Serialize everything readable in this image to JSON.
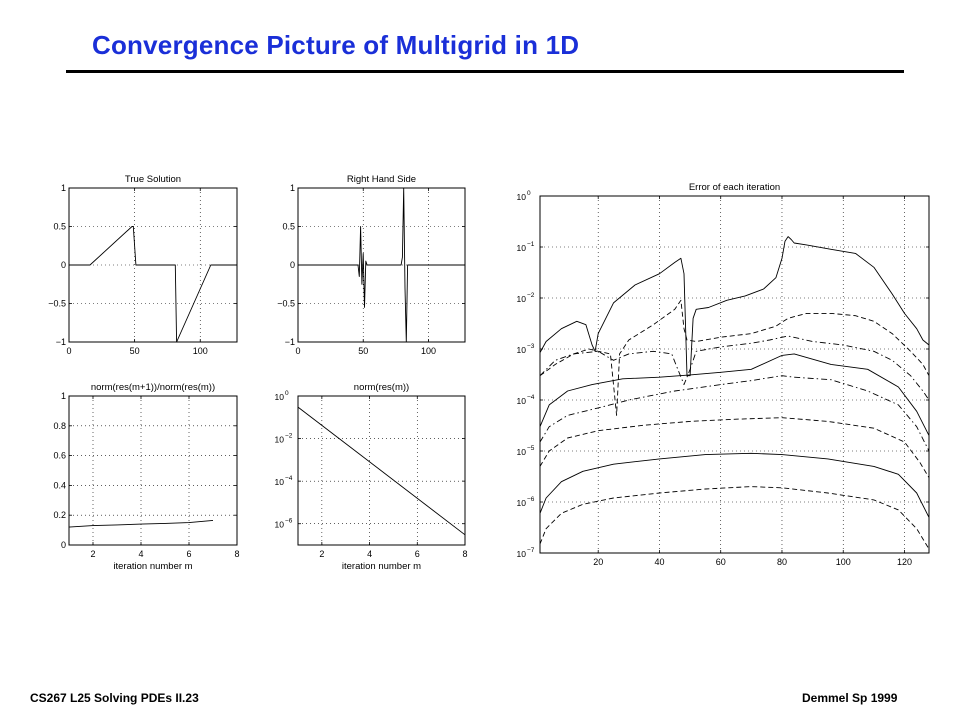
{
  "slide": {
    "title": "Convergence Picture of Multigrid in 1D",
    "footer_left": "CS267  L25 Solving PDEs II.23",
    "footer_right": "Demmel Sp 1999"
  },
  "chart_data": [
    {
      "type": "line",
      "title": "True Solution",
      "xlabel": "",
      "ylabel": "",
      "xlim": [
        0,
        128
      ],
      "ylim": [
        -1,
        1
      ],
      "xticks": [
        0,
        50,
        100
      ],
      "xtick_labels": [
        "0",
        "50",
        "100"
      ],
      "yticks": [
        -1,
        -0.5,
        0,
        0.5,
        1
      ],
      "ytick_labels": [
        "−1",
        "−0.5",
        "0",
        "0.5",
        "1"
      ],
      "grid": true,
      "series": [
        {
          "x": [
            0,
            16,
            48,
            49,
            51,
            80,
            81,
            82,
            108,
            128
          ],
          "y": [
            0,
            0,
            0.5,
            0.5,
            0,
            0,
            0,
            -1,
            0,
            0
          ]
        }
      ]
    },
    {
      "type": "line",
      "title": "Right Hand Side",
      "xlabel": "",
      "ylabel": "",
      "xlim": [
        0,
        128
      ],
      "ylim": [
        -1,
        1
      ],
      "xticks": [
        0,
        50,
        100
      ],
      "xtick_labels": [
        "0",
        "50",
        "100"
      ],
      "yticks": [
        -1,
        -0.5,
        0,
        0.5,
        1
      ],
      "ytick_labels": [
        "−1",
        "−0.5",
        "0",
        "0.5",
        "1"
      ],
      "grid": true,
      "series": [
        {
          "x": [
            0,
            46,
            47,
            48,
            49,
            50,
            51,
            52,
            53,
            79,
            80,
            81,
            82,
            83,
            84,
            100,
            128
          ],
          "y": [
            0,
            0,
            -0.15,
            0.5,
            -0.25,
            0.15,
            -0.55,
            0.05,
            0,
            0,
            0.1,
            1,
            -0.3,
            -1,
            0,
            0,
            0
          ]
        }
      ]
    },
    {
      "type": "line",
      "title": "norm(res(m+1))/norm(res(m))",
      "xlabel": "iteration number m",
      "ylabel": "",
      "xlim": [
        1,
        8
      ],
      "ylim": [
        0,
        1
      ],
      "xticks": [
        2,
        4,
        6,
        8
      ],
      "xtick_labels": [
        "2",
        "4",
        "6",
        "8"
      ],
      "yticks": [
        0,
        0.2,
        0.4,
        0.6,
        0.8,
        1
      ],
      "ytick_labels": [
        "0",
        "0.2",
        "0.4",
        "0.6",
        "0.8",
        "1"
      ],
      "grid": true,
      "series": [
        {
          "x": [
            1,
            2,
            3,
            4,
            5,
            6,
            7
          ],
          "y": [
            0.12,
            0.13,
            0.135,
            0.14,
            0.145,
            0.15,
            0.165
          ]
        }
      ]
    },
    {
      "type": "line",
      "title": "norm(res(m))",
      "xlabel": "iteration number m",
      "ylabel": "",
      "xlim": [
        1,
        8
      ],
      "ylim": [
        1e-07,
        1
      ],
      "yscale": "log",
      "xticks": [
        2,
        4,
        6,
        8
      ],
      "xtick_labels": [
        "2",
        "4",
        "6",
        "8"
      ],
      "yticks": [
        1,
        0.01,
        0.0001,
        1e-06
      ],
      "ytick_exponents": [
        "0",
        "−2",
        "−4",
        "−6"
      ],
      "grid": true,
      "series": [
        {
          "x": [
            1,
            8
          ],
          "y": [
            0.3,
            3e-07
          ]
        }
      ]
    },
    {
      "type": "line",
      "title": "Error of each iteration",
      "xlabel": "",
      "ylabel": "",
      "xlim": [
        1,
        128
      ],
      "ylim": [
        1e-07,
        1
      ],
      "yscale": "log",
      "xticks": [
        20,
        40,
        60,
        80,
        100,
        120
      ],
      "xtick_labels": [
        "20",
        "40",
        "60",
        "80",
        "100",
        "120"
      ],
      "yticks": [
        1,
        0.1,
        0.01,
        0.001,
        0.0001,
        1e-05,
        1e-06,
        1e-07
      ],
      "ytick_exponents": [
        "0",
        "−1",
        "−2",
        "−3",
        "−4",
        "−5",
        "−6",
        "−7"
      ],
      "grid": true,
      "series": [
        {
          "style": "solid",
          "x": [
            1,
            3,
            8,
            13,
            16,
            18,
            19,
            20,
            25,
            32,
            40,
            45,
            47,
            48,
            49,
            50,
            51,
            52,
            56,
            62,
            68,
            74,
            78,
            80,
            81,
            82,
            83,
            84,
            88,
            96,
            104,
            110,
            116,
            120,
            124,
            126,
            128
          ],
          "y": [
            0.00085,
            0.0014,
            0.0025,
            0.0035,
            0.003,
            0.0012,
            0.0009,
            0.002,
            0.008,
            0.018,
            0.03,
            0.05,
            0.06,
            0.03,
            0.0003,
            0.0003,
            0.004,
            0.006,
            0.0065,
            0.009,
            0.011,
            0.015,
            0.025,
            0.06,
            0.13,
            0.16,
            0.14,
            0.12,
            0.11,
            0.09,
            0.075,
            0.04,
            0.012,
            0.005,
            0.0025,
            0.0015,
            0.0012
          ]
        },
        {
          "style": "dashed",
          "x": [
            1,
            6,
            12,
            17,
            20,
            24,
            25,
            26,
            27,
            30,
            38,
            45,
            47,
            48,
            49,
            52,
            60,
            70,
            78,
            82,
            88,
            96,
            104,
            110,
            116,
            122,
            126,
            128
          ],
          "y": [
            0.0003,
            0.0005,
            0.0008,
            0.001,
            0.0009,
            0.0008,
            0.0002,
            5e-05,
            0.0008,
            0.0015,
            0.003,
            0.006,
            0.009,
            0.0025,
            0.0015,
            0.0014,
            0.0017,
            0.002,
            0.0028,
            0.004,
            0.005,
            0.005,
            0.0045,
            0.0035,
            0.002,
            0.0009,
            0.0005,
            0.0003
          ]
        },
        {
          "style": "dashdot",
          "x": [
            1,
            6,
            12,
            20,
            25,
            30,
            38,
            44,
            46,
            48,
            50,
            52,
            60,
            70,
            76,
            82,
            90,
            100,
            110,
            116,
            122,
            126,
            128
          ],
          "y": [
            0.0003,
            0.0006,
            0.0008,
            0.0009,
            0.0006,
            0.0008,
            0.0009,
            0.0008,
            0.0004,
            0.0002,
            0.0004,
            0.0009,
            0.0011,
            0.0013,
            0.0015,
            0.0018,
            0.0014,
            0.0012,
            0.0009,
            0.0006,
            0.0003,
            0.00015,
            0.0001
          ]
        },
        {
          "style": "solid",
          "x": [
            1,
            4,
            10,
            18,
            28,
            40,
            50,
            60,
            70,
            80,
            84,
            96,
            108,
            118,
            124,
            128
          ],
          "y": [
            3e-05,
            8e-05,
            0.00015,
            0.0002,
            0.00026,
            0.00028,
            0.00031,
            0.00035,
            0.0004,
            0.00075,
            0.0008,
            0.0005,
            0.0004,
            0.00018,
            6e-05,
            2e-05
          ]
        },
        {
          "style": "dashdot",
          "x": [
            1,
            4,
            10,
            20,
            30,
            45,
            60,
            70,
            80,
            84,
            96,
            108,
            118,
            124,
            128
          ],
          "y": [
            1.5e-05,
            3e-05,
            5e-05,
            7e-05,
            0.0001,
            0.00015,
            0.0002,
            0.00024,
            0.0003,
            0.00028,
            0.00025,
            0.00015,
            8e-05,
            3e-05,
            1e-05
          ]
        },
        {
          "style": "dashed",
          "x": [
            1,
            4,
            10,
            20,
            35,
            50,
            65,
            80,
            95,
            110,
            120,
            125,
            128
          ],
          "y": [
            5e-06,
            1e-05,
            1.8e-05,
            2.5e-05,
            3.2e-05,
            3.8e-05,
            4.2e-05,
            4.5e-05,
            3.8e-05,
            2.8e-05,
            1.5e-05,
            6e-06,
            3e-06
          ]
        },
        {
          "style": "solid",
          "x": [
            1,
            3,
            8,
            15,
            25,
            40,
            55,
            70,
            80,
            95,
            110,
            118,
            124,
            128
          ],
          "y": [
            6e-07,
            1.2e-06,
            2.5e-06,
            4e-06,
            5.5e-06,
            7e-06,
            8.5e-06,
            9e-06,
            8.5e-06,
            7e-06,
            5e-06,
            3.5e-06,
            1.5e-06,
            5e-07
          ]
        },
        {
          "style": "dashed",
          "x": [
            1,
            3,
            8,
            15,
            25,
            40,
            55,
            70,
            80,
            95,
            110,
            118,
            124,
            128
          ],
          "y": [
            1.5e-07,
            3e-07,
            6e-07,
            9e-07,
            1.2e-06,
            1.5e-06,
            1.8e-06,
            2e-06,
            1.9e-06,
            1.5e-06,
            1.1e-06,
            7e-07,
            3e-07,
            1.2e-07
          ]
        }
      ]
    }
  ]
}
